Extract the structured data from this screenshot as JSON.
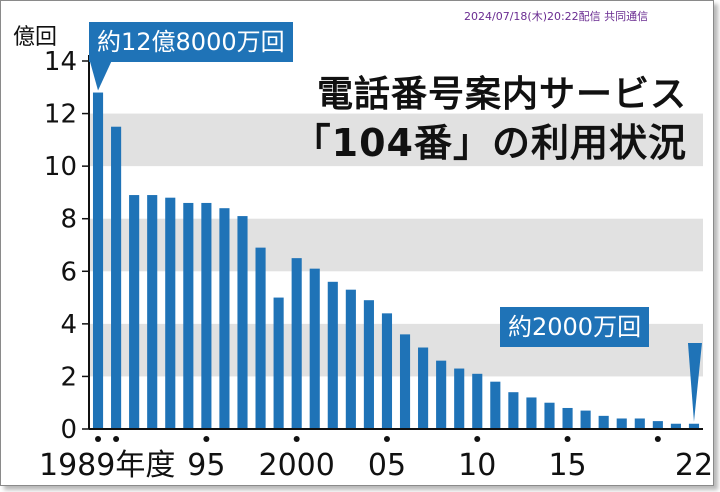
{
  "credit": "2024/07/18(木)20:22配信 共同通信",
  "unit": "億回",
  "title_lines": [
    "電話番号案内サービス",
    "「104番」の利用状況"
  ],
  "callout_first": "約12億8000万回",
  "callout_last": "約2000万回",
  "colors": {
    "bar": "#1f73b7",
    "band": "#e1e1e1",
    "axis": "#111111",
    "callout": "#1f73b7"
  },
  "chart_data": {
    "type": "bar",
    "title": "電話番号案内サービス「104番」の利用状況",
    "ylabel": "億回",
    "xlabel": "",
    "ylim": [
      0,
      14
    ],
    "yticks": [
      0,
      2,
      4,
      6,
      8,
      10,
      12,
      14
    ],
    "grid": "alternating horizontal bands",
    "categories": [
      "1989",
      "1990",
      "1991",
      "1992",
      "1993",
      "1994",
      "1995",
      "1996",
      "1997",
      "1998",
      "1999",
      "2000",
      "2001",
      "2002",
      "2003",
      "2004",
      "2005",
      "2006",
      "2007",
      "2008",
      "2009",
      "2010",
      "2011",
      "2012",
      "2013",
      "2014",
      "2015",
      "2016",
      "2017",
      "2018",
      "2019",
      "2020",
      "2021",
      "2022"
    ],
    "values": [
      12.8,
      11.5,
      8.9,
      8.9,
      8.8,
      8.6,
      8.6,
      8.4,
      8.1,
      6.9,
      5.0,
      6.5,
      6.1,
      5.6,
      5.3,
      4.9,
      4.4,
      3.6,
      3.1,
      2.6,
      2.3,
      2.1,
      1.8,
      1.4,
      1.2,
      1.0,
      0.8,
      0.7,
      0.5,
      0.4,
      0.4,
      0.3,
      0.2,
      0.2
    ],
    "xtick_labels": [
      {
        "index": 0,
        "label": "1989年度"
      },
      {
        "index": 6,
        "label": "95"
      },
      {
        "index": 11,
        "label": "2000"
      },
      {
        "index": 16,
        "label": "05"
      },
      {
        "index": 21,
        "label": "10"
      },
      {
        "index": 26,
        "label": "15"
      },
      {
        "index": 33,
        "label": "22"
      }
    ],
    "tick_marker_every": 5,
    "annotations": [
      {
        "index": 0,
        "text": "約12億8000万回"
      },
      {
        "index": 33,
        "text": "約2000万回"
      }
    ]
  }
}
